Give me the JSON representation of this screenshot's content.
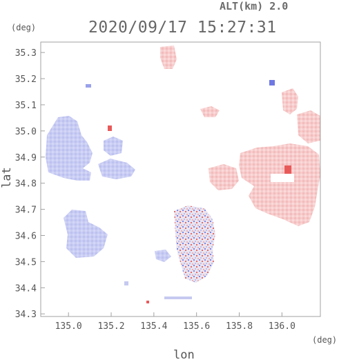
{
  "header": {
    "altitude_label": "ALT(km) 2.0",
    "timestamp": "2020/09/17 15:27:31"
  },
  "axes": {
    "x_unit": "(deg)",
    "y_unit": "(deg)",
    "x_title": "lon",
    "y_title": "lat",
    "x_range": [
      134.87,
      136.18
    ],
    "y_range": [
      34.29,
      35.34
    ],
    "x_ticks": [
      "135.0",
      "135.2",
      "135.4",
      "135.6",
      "135.8",
      "136.0"
    ],
    "x_tick_values": [
      135.0,
      135.2,
      135.4,
      135.6,
      135.8,
      136.0
    ],
    "y_ticks": [
      "35.3",
      "35.2",
      "35.1",
      "35.0",
      "34.9",
      "34.8",
      "34.7",
      "34.6",
      "34.5",
      "34.4",
      "34.3"
    ],
    "y_tick_values": [
      35.3,
      35.2,
      35.1,
      35.0,
      34.9,
      34.8,
      34.7,
      34.6,
      34.5,
      34.4,
      34.3
    ]
  },
  "colors": {
    "approaching": "#c8ccf4",
    "receding": "#f6c8c8",
    "strong_receding": "#e85a5a",
    "strong_approaching": "#5a66e0"
  }
}
